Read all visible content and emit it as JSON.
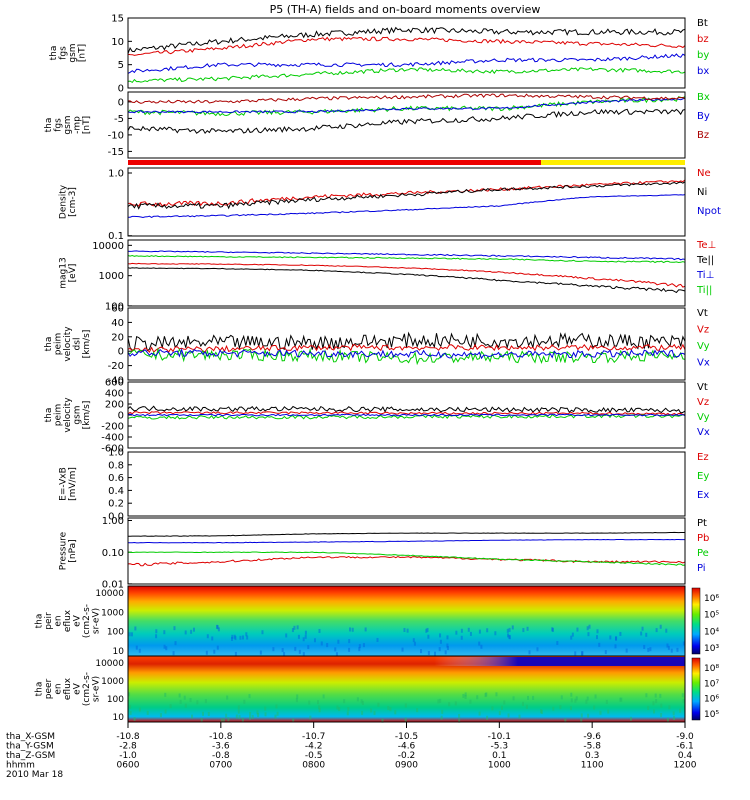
{
  "title": "P5 (TH-A) fields and on-board moments overview",
  "date_label": "2010 Mar 18",
  "ephemeris": {
    "labels": [
      "tha_X-GSM",
      "tha_Y-GSM",
      "tha_Z-GSM",
      "hhmm"
    ],
    "rows": [
      [
        "-10.8",
        "-10.8",
        "-10.7",
        "-10.5",
        "-10.1",
        "-9.6",
        "-9.0"
      ],
      [
        "-2.8",
        "-3.6",
        "-4.2",
        "-4.6",
        "-5.3",
        "-5.8",
        "-6.1"
      ],
      [
        "-1.0",
        "-0.8",
        "-0.5",
        "-0.2",
        "0.1",
        "0.3",
        "0.4"
      ],
      [
        "0600",
        "0700",
        "0800",
        "0900",
        "1000",
        "1100",
        "1200"
      ]
    ]
  },
  "chart_data": [
    {
      "type": "line",
      "ylabel": [
        "tha",
        "fgs",
        "gsm",
        "[nT]"
      ],
      "ylim": [
        0,
        15
      ],
      "ticks": [
        {
          "v": 15,
          "t": "15"
        },
        {
          "v": 10,
          "t": "10"
        },
        {
          "v": 5,
          "t": "5"
        },
        {
          "v": 0,
          "t": "0"
        }
      ],
      "x": [
        "0600",
        "0700",
        "0800",
        "0900",
        "1000",
        "1100",
        "1200"
      ],
      "series": [
        {
          "name": "Bt",
          "color": "#000000",
          "values": [
            8,
            10,
            11.5,
            12.5,
            12,
            12,
            12
          ],
          "noise": 0.6
        },
        {
          "name": "bz",
          "color": "#dd0000",
          "values": [
            7,
            8.5,
            10.5,
            10.5,
            10,
            9.5,
            9
          ],
          "noise": 0.4
        },
        {
          "name": "by",
          "color": "#00cc00",
          "values": [
            1.5,
            2,
            3,
            4,
            3.5,
            4,
            3.5
          ],
          "noise": 0.4
        },
        {
          "name": "bx",
          "color": "#0000dd",
          "values": [
            3.5,
            5,
            5,
            5,
            6,
            6,
            7
          ],
          "noise": 0.4
        }
      ]
    },
    {
      "type": "line",
      "ylabel": [
        "tha",
        "fgs",
        "gsm",
        "-mp",
        "[nT]"
      ],
      "ylim": [
        -17,
        3
      ],
      "ticks": [
        {
          "v": 0,
          "t": "0"
        },
        {
          "v": -5,
          "t": "-5"
        },
        {
          "v": -10,
          "t": "-10"
        },
        {
          "v": -15,
          "t": "-15"
        }
      ],
      "series": [
        {
          "name": "Bx",
          "color": "#00cc00",
          "values": [
            -3,
            -3.5,
            -3,
            -2,
            -2,
            0,
            1
          ],
          "noise": 0.7
        },
        {
          "name": "By",
          "color": "#0000dd",
          "values": [
            -3,
            -3,
            -3,
            -2,
            -2,
            0,
            1
          ],
          "noise": 0.3
        },
        {
          "name": "Bz",
          "color": "#aa0000",
          "values": [
            0,
            0,
            1,
            1.5,
            2,
            1.5,
            1
          ],
          "noise": 0.5
        },
        {
          "name": "",
          "color": "#000000",
          "values": [
            -8,
            -9,
            -8,
            -6,
            -5,
            -3,
            -3
          ],
          "noise": 0.8
        }
      ]
    },
    {
      "type": "line",
      "ylabel": [
        "Density",
        "[cm-3]"
      ],
      "scale": "log",
      "ylim": [
        0.1,
        1.2
      ],
      "ticks": [
        {
          "v": 1.0,
          "t": "1.0"
        },
        {
          "v": 0.1,
          "t": "0.1"
        }
      ],
      "series": [
        {
          "name": "Ne",
          "color": "#dd0000",
          "values": [
            0.32,
            0.33,
            0.42,
            0.48,
            0.55,
            0.65,
            0.75
          ],
          "noise": 0.03
        },
        {
          "name": "Ni",
          "color": "#000000",
          "values": [
            0.3,
            0.3,
            0.38,
            0.45,
            0.55,
            0.62,
            0.7
          ],
          "noise": 0.03
        },
        {
          "name": "Npot",
          "color": "#0000dd",
          "values": [
            0.2,
            0.21,
            0.23,
            0.26,
            0.3,
            0.42,
            0.45
          ],
          "noise": 0.005
        }
      ]
    },
    {
      "type": "line",
      "ylabel": [
        "mag13",
        "[eV]"
      ],
      "scale": "log",
      "ylim": [
        100,
        15000
      ],
      "ticks": [
        {
          "v": 10000,
          "t": "10000"
        },
        {
          "v": 1000,
          "t": "1000"
        },
        {
          "v": 100,
          "t": "100"
        }
      ],
      "series": [
        {
          "name": "Te⊥",
          "color": "#dd0000",
          "values": [
            2500,
            2400,
            2200,
            1800,
            1300,
            800,
            450
          ],
          "noise": 60
        },
        {
          "name": "Te||",
          "color": "#000000",
          "values": [
            1800,
            1700,
            1500,
            1100,
            700,
            450,
            300
          ],
          "noise": 40
        },
        {
          "name": "Ti⊥",
          "color": "#0000dd",
          "values": [
            6500,
            6000,
            5500,
            5000,
            4500,
            4000,
            3500
          ],
          "noise": 200
        },
        {
          "name": "Ti||",
          "color": "#00cc00",
          "values": [
            4500,
            4200,
            4000,
            3800,
            3500,
            3000,
            2800
          ],
          "noise": 150
        }
      ]
    },
    {
      "type": "line",
      "ylabel": [
        "tha",
        "peim",
        "velocity",
        "dsl",
        "[km/s]"
      ],
      "ylim": [
        -40,
        60
      ],
      "ticks": [
        {
          "v": 60,
          "t": "60"
        },
        {
          "v": 40,
          "t": "40"
        },
        {
          "v": 20,
          "t": "20"
        },
        {
          "v": 0,
          "t": "0"
        },
        {
          "v": -20,
          "t": "-20"
        },
        {
          "v": -40,
          "t": "-40"
        }
      ],
      "series": [
        {
          "name": "Vt",
          "color": "#000000",
          "values": [
            10,
            12,
            12,
            15,
            15,
            15,
            12
          ],
          "noise": 10
        },
        {
          "name": "Vz",
          "color": "#dd0000",
          "values": [
            2,
            3,
            5,
            5,
            5,
            5,
            5
          ],
          "noise": 4
        },
        {
          "name": "Vy",
          "color": "#00cc00",
          "values": [
            -5,
            -5,
            -6,
            -10,
            -8,
            -8,
            -6
          ],
          "noise": 8
        },
        {
          "name": "Vx",
          "color": "#0000dd",
          "values": [
            -2,
            -3,
            -3,
            -4,
            -5,
            -4,
            -3
          ],
          "noise": 5
        }
      ]
    },
    {
      "type": "line",
      "ylabel": [
        "tha",
        "peim",
        "velocity",
        "gsm",
        "[km/s]"
      ],
      "ylim": [
        -600,
        600
      ],
      "ticks": [
        {
          "v": 600,
          "t": "600"
        },
        {
          "v": 400,
          "t": "400"
        },
        {
          "v": 200,
          "t": "200"
        },
        {
          "v": 0,
          "t": "0"
        },
        {
          "v": -200,
          "t": "-200"
        },
        {
          "v": -400,
          "t": "-400"
        },
        {
          "v": -600,
          "t": "-600"
        }
      ],
      "series": [
        {
          "name": "Vt",
          "color": "#000000",
          "values": [
            120,
            110,
            110,
            100,
            100,
            90,
            80
          ],
          "noise": 45
        },
        {
          "name": "Vz",
          "color": "#dd0000",
          "values": [
            40,
            40,
            40,
            30,
            30,
            30,
            20
          ],
          "noise": 20
        },
        {
          "name": "Vy",
          "color": "#00cc00",
          "values": [
            -50,
            -40,
            -40,
            -30,
            -30,
            -20,
            -20
          ],
          "noise": 30
        },
        {
          "name": "Vx",
          "color": "#0000dd",
          "values": [
            0,
            0,
            0,
            0,
            0,
            0,
            0
          ],
          "noise": 15
        }
      ]
    },
    {
      "type": "line",
      "ylabel": [
        "E=-VxB",
        "[mV/m]"
      ],
      "ylim": [
        0,
        1.0
      ],
      "ticks": [
        {
          "v": 1.0,
          "t": "1.0"
        },
        {
          "v": 0.8,
          "t": "0.8"
        },
        {
          "v": 0.6,
          "t": "0.6"
        },
        {
          "v": 0.4,
          "t": "0.4"
        },
        {
          "v": 0.2,
          "t": "0.2"
        },
        {
          "v": 0.0,
          "t": "0.0"
        }
      ],
      "series": [
        {
          "name": "Ez",
          "color": "#dd0000",
          "values": []
        },
        {
          "name": "Ey",
          "color": "#00cc00",
          "values": []
        },
        {
          "name": "Ex",
          "color": "#0000dd",
          "values": []
        }
      ]
    },
    {
      "type": "line",
      "ylabel": [
        "Pressure",
        "[nPa]"
      ],
      "scale": "log",
      "ylim": [
        0.01,
        1.2
      ],
      "ticks": [
        {
          "v": 1.0,
          "t": "1.00"
        },
        {
          "v": 0.1,
          "t": "0.10"
        },
        {
          "v": 0.01,
          "t": "0.01"
        }
      ],
      "series": [
        {
          "name": "Pt",
          "color": "#000000",
          "values": [
            0.32,
            0.33,
            0.38,
            0.4,
            0.4,
            0.4,
            0.42
          ],
          "noise": 0.005
        },
        {
          "name": "Pb",
          "color": "#dd0000",
          "values": [
            0.04,
            0.05,
            0.07,
            0.07,
            0.06,
            0.05,
            0.05
          ],
          "noise": 0.004
        },
        {
          "name": "Pe",
          "color": "#00cc00",
          "values": [
            0.1,
            0.1,
            0.1,
            0.08,
            0.06,
            0.05,
            0.04
          ],
          "noise": 0.002
        },
        {
          "name": "Pi",
          "color": "#0000dd",
          "values": [
            0.2,
            0.2,
            0.21,
            0.22,
            0.24,
            0.25,
            0.25
          ],
          "noise": 0.003
        }
      ]
    },
    {
      "type": "heatmap",
      "ylabel": [
        "tha",
        "peir",
        "en",
        "eflux",
        "eV",
        "(cm2-s-",
        "sr-eV)"
      ],
      "ticks": [
        "10000",
        "1000",
        "100",
        "10"
      ],
      "colorbar_ticks": [
        "10⁶",
        "10⁵",
        "10⁴",
        "10³"
      ]
    },
    {
      "type": "heatmap",
      "ylabel": [
        "tha",
        "peer",
        "en",
        "eflux",
        "eV",
        "(cm2-s-",
        "sr-eV)"
      ],
      "ticks": [
        "10000",
        "1000",
        "100",
        "10"
      ],
      "colorbar_ticks": [
        "10⁸",
        "10⁷",
        "10⁶",
        "10⁵"
      ]
    }
  ]
}
